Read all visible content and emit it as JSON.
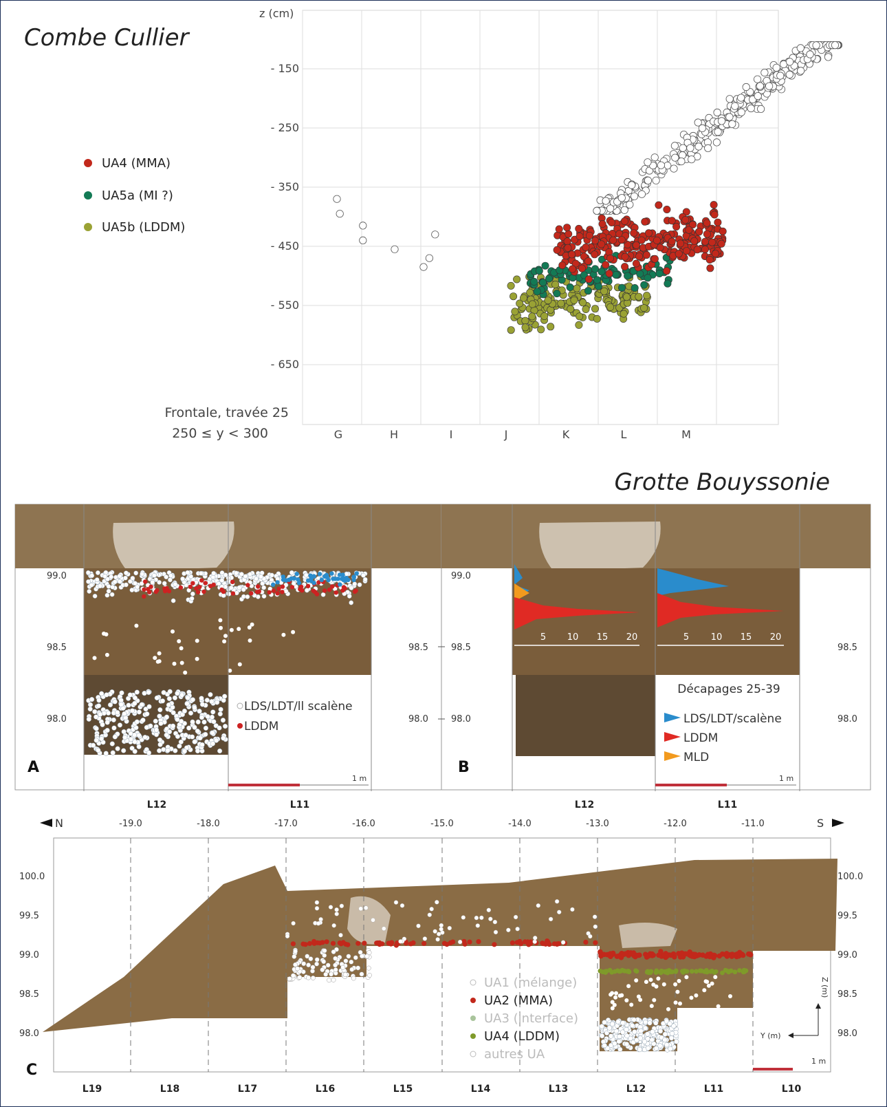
{
  "figure": {
    "combe_title": "Combe Cullier",
    "bouyssonie_title": "Grotte Bouyssonie"
  },
  "chart_data": [
    {
      "type": "scatter",
      "title": "Combe Cullier",
      "ylabel": "z (cm)",
      "caption_line1": "Frontale, travée 25",
      "caption_line2": "250 ≤ y < 300",
      "x_categories": [
        "G",
        "H",
        "I",
        "J",
        "K",
        "L",
        "M"
      ],
      "y_ticks": [
        "- 150",
        "- 250",
        "- 350",
        "- 450",
        "- 550",
        "- 650"
      ],
      "ylim": [
        -700,
        -50
      ],
      "legend": [
        {
          "label": "UA4 (MMA)",
          "color": "#c2281b"
        },
        {
          "label": "UA5a (MI ?)",
          "color": "#137a55"
        },
        {
          "label": "UA5b (LDDM)",
          "color": "#9aa234"
        }
      ],
      "series": [
        {
          "name": "UA4 (MMA)",
          "color": "#c2281b",
          "x_range": [
            3.8,
            6.7
          ],
          "y_range": [
            -515,
            -370
          ],
          "count": 260
        },
        {
          "name": "UA5a (MI ?)",
          "color": "#137a55",
          "x_range": [
            3.3,
            5.8
          ],
          "y_range": [
            -540,
            -455
          ],
          "count": 90
        },
        {
          "name": "UA5b (LDDM)",
          "color": "#9aa234",
          "x_range": [
            3.0,
            5.4
          ],
          "y_range": [
            -610,
            -480
          ],
          "count": 160
        },
        {
          "name": "",
          "color": "#ffffff",
          "x_range": [
            4.5,
            8.7
          ],
          "y_range": [
            -390,
            -110
          ],
          "count": 320
        }
      ]
    },
    {
      "type": "scatter",
      "panel": "A",
      "y_ticks": [
        "99.0",
        "98.5",
        "98.0"
      ],
      "x_squares": [
        "L12",
        "L11"
      ],
      "scale": "1 m",
      "legend": [
        {
          "label": "LDS/LDT/ll scalène",
          "color": "#ffffff"
        },
        {
          "label": "LDDM",
          "color": "#cc2222"
        }
      ]
    },
    {
      "type": "area",
      "panel": "B",
      "y_ticks": [
        "99.0",
        "98.5",
        "98.0"
      ],
      "x_ticks": [
        "5",
        "10",
        "15",
        "20"
      ],
      "x_squares": [
        "L12",
        "L11"
      ],
      "scale": "1 m",
      "caption": "Décapages 25-39",
      "legend": [
        {
          "label": "LDS/LDT/scalène",
          "color": "#2a8ccc"
        },
        {
          "label": "LDDM",
          "color": "#e02a24"
        },
        {
          "label": "MLD",
          "color": "#f29a1e"
        }
      ]
    },
    {
      "type": "scatter",
      "panel": "C",
      "x_ticks": [
        "-19.0",
        "-18.0",
        "-17.0",
        "-16.0",
        "-15.0",
        "-14.0",
        "-13.0",
        "-12.0",
        "-11.0"
      ],
      "north_label": "N",
      "south_label": "S",
      "y_ticks": [
        "100.0",
        "99.5",
        "99.0",
        "98.5",
        "98.0"
      ],
      "x_squares": [
        "L19",
        "L18",
        "L17",
        "L16",
        "L15",
        "L14",
        "L13",
        "L12",
        "L11",
        "L10"
      ],
      "axis_z": "Z (m)",
      "axis_y": "Y (m)",
      "scale": "1 m",
      "legend": [
        {
          "label": "UA1 (mélange)",
          "color": "#bdbdbd",
          "muted": true
        },
        {
          "label": "UA2 (MMA)",
          "color": "#c2281b",
          "muted": false
        },
        {
          "label": "UA3 (interface)",
          "color": "#a9c49b",
          "muted": true
        },
        {
          "label": "UA4 (LDDM)",
          "color": "#7f9a2a",
          "muted": false
        },
        {
          "label": "autres UA",
          "color": "#ffffff",
          "muted": true
        }
      ]
    }
  ]
}
